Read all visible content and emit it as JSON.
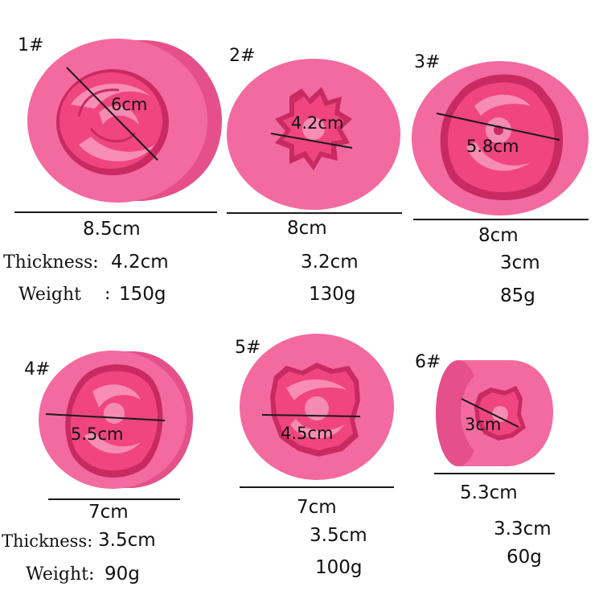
{
  "colors": {
    "mold_body": "#f36aa0",
    "mold_edge": "#e5508a",
    "cavity": "#f0457f",
    "cavity_shadow": "#c92a62",
    "line": "#1a1a1a",
    "text": "#111111"
  },
  "labels": {
    "thickness": "Thickness:",
    "weight_top": "Weight",
    "weight_top_colon": ":",
    "weight_bottom": "Weight:"
  },
  "molds": [
    {
      "id": "1#",
      "cavity": "6cm",
      "diameter": "8.5cm",
      "thickness": "4.2cm",
      "weight": "150g"
    },
    {
      "id": "2#",
      "cavity": "4.2cm",
      "diameter": "8cm",
      "thickness": "3.2cm",
      "weight": "130g"
    },
    {
      "id": "3#",
      "cavity": "5.8cm",
      "diameter": "8cm",
      "thickness": "3cm",
      "weight": "85g"
    },
    {
      "id": "4#",
      "cavity": "5.5cm",
      "diameter": "7cm",
      "thickness": "3.5cm",
      "weight": "90g"
    },
    {
      "id": "5#",
      "cavity": "4.5cm",
      "diameter": "7cm",
      "thickness": "3.5cm",
      "weight": "100g"
    },
    {
      "id": "6#",
      "cavity": "3cm",
      "diameter": "5.3cm",
      "thickness": "3.3cm",
      "weight": "60g"
    }
  ]
}
